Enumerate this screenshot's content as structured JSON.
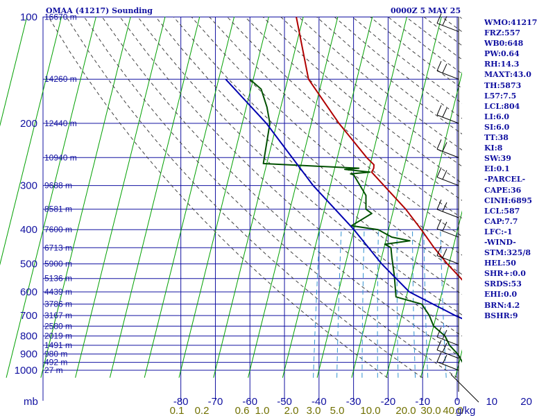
{
  "header": {
    "title": "OMAA (41217) Sounding",
    "datetime": "0000Z  5 MAY 25"
  },
  "indices": [
    "WMO:41217",
    "FRZ:557",
    "WB0:648",
    "PW:0.64",
    "RH:14.3",
    "MAXT:43.0",
    "TH:5873",
    "L57:7.5",
    "LCL:804",
    "LI:6.0",
    "SI:6.0",
    "TT:38",
    "KI:8",
    "SW:39",
    "EI:0.1",
    "-PARCEL-",
    "CAPE:36",
    "CINH:6895",
    "LCL:587",
    "CAP:7.7",
    "LFC:-1",
    "-WIND-",
    "STM:325/8",
    "HEL:50",
    "SHR+:0.0",
    "SRDS:53",
    "EHI:0.0",
    "BRN:4.2",
    "BSHR:9"
  ],
  "colors": {
    "grid": "#1010a0",
    "isotherm": "#00a000",
    "dry_adiabat": "#404040",
    "mixing_ratio": "#3090d0",
    "temperature": "#b00000",
    "dewpoint": "#005000",
    "parcel": "#0000b0",
    "label": "#1010a0"
  },
  "chart_data": {
    "type": "line",
    "title": "OMAA (41217) Sounding",
    "pressure_unit": "mb",
    "mixing_ratio_unit": "g/kg",
    "pressure_levels": [
      100,
      200,
      300,
      400,
      500,
      600,
      700,
      800,
      900,
      1000
    ],
    "temperature_ticks": [
      -80,
      -70,
      -60,
      -50,
      -40,
      -30,
      -20,
      -10,
      0,
      10,
      20,
      30,
      40
    ],
    "mixing_ratio_labels": [
      "0.1",
      "0.2",
      "0.6",
      "1.0",
      "2.0",
      "3.0",
      "5.0",
      "10.0",
      "20.0",
      "30.0",
      "40.0"
    ],
    "height_labels": [
      {
        "p": 100,
        "label": "16670 m"
      },
      {
        "p": 150,
        "label": "14260 m"
      },
      {
        "p": 200,
        "label": "12440 m"
      },
      {
        "p": 250,
        "label": "10940 m"
      },
      {
        "p": 300,
        "label": "9688 m"
      },
      {
        "p": 350,
        "label": "8581 m"
      },
      {
        "p": 400,
        "label": "7600 m"
      },
      {
        "p": 450,
        "label": "6713 m"
      },
      {
        "p": 500,
        "label": "5900 m"
      },
      {
        "p": 550,
        "label": "5136 m"
      },
      {
        "p": 600,
        "label": "4439 m"
      },
      {
        "p": 650,
        "label": "3786 m"
      },
      {
        "p": 700,
        "label": "3167 m"
      },
      {
        "p": 750,
        "label": "2580 m"
      },
      {
        "p": 800,
        "label": "2019 m"
      },
      {
        "p": 850,
        "label": "1491 m"
      },
      {
        "p": 900,
        "label": "980 m"
      },
      {
        "p": 950,
        "label": "492 m"
      },
      {
        "p": 1000,
        "label": "27 m"
      }
    ],
    "series": [
      {
        "points": [
          [
            1000,
            28.0
          ],
          [
            980,
            34.5
          ],
          [
            950,
            34.0
          ],
          [
            925,
            31.5
          ],
          [
            900,
            28.0
          ],
          [
            850,
            23.0
          ],
          [
            800,
            17.0
          ],
          [
            750,
            12.0
          ],
          [
            700,
            8.0
          ],
          [
            650,
            3.5
          ],
          [
            600,
            -1.0
          ],
          [
            550,
            -5.5
          ],
          [
            500,
            -10.5
          ],
          [
            450,
            -15.5
          ],
          [
            400,
            -20.5
          ],
          [
            350,
            -26.5
          ],
          [
            300,
            -34.5
          ],
          [
            275,
            -39.0
          ],
          [
            268,
            -38.7
          ],
          [
            262,
            -38.9
          ],
          [
            250,
            -41.5
          ],
          [
            200,
            -52.0
          ],
          [
            150,
            -64.0
          ],
          [
            100,
            -72.0
          ]
        ]
      },
      {
        "points": [
          [
            1000,
            12.0
          ],
          [
            990,
            3.0
          ],
          [
            950,
            1.0
          ],
          [
            900,
            -1.0
          ],
          [
            850,
            -4.0
          ],
          [
            800,
            -6.0
          ],
          [
            750,
            -10.0
          ],
          [
            700,
            -12.0
          ],
          [
            650,
            -15.0
          ],
          [
            620,
            -23.0
          ],
          [
            540,
            -25.0
          ],
          [
            480,
            -27.0
          ],
          [
            450,
            -28.0
          ],
          [
            440,
            -30.0
          ],
          [
            430,
            -23.0
          ],
          [
            420,
            -28.5
          ],
          [
            400,
            -33.0
          ],
          [
            390,
            -41.0
          ],
          [
            360,
            -36.0
          ],
          [
            350,
            -38.0
          ],
          [
            320,
            -39.0
          ],
          [
            280,
            -44.0
          ],
          [
            278,
            -45.0
          ],
          [
            275,
            -39.5
          ],
          [
            270,
            -47.0
          ],
          [
            268,
            -43.0
          ],
          [
            260,
            -71.0
          ],
          [
            200,
            -72.0
          ],
          [
            180,
            -74.0
          ],
          [
            160,
            -77.0
          ],
          [
            150,
            -81.0
          ]
        ]
      },
      {
        "points": [
          [
            1000,
            38.0
          ],
          [
            900,
            25.0
          ],
          [
            800,
            10.5
          ],
          [
            700,
            -4.5
          ],
          [
            600,
            -19.5
          ],
          [
            500,
            -29.5
          ],
          [
            400,
            -40.0
          ],
          [
            300,
            -55.0
          ],
          [
            200,
            -73.0
          ],
          [
            150,
            -88.0
          ]
        ]
      }
    ],
    "wind_barbs": [
      {
        "p": 110
      },
      {
        "p": 150
      },
      {
        "p": 200
      },
      {
        "p": 250
      },
      {
        "p": 300
      },
      {
        "p": 370
      },
      {
        "p": 420
      },
      {
        "p": 500
      },
      {
        "p": 850
      },
      {
        "p": 925
      },
      {
        "p": 1000
      }
    ]
  }
}
